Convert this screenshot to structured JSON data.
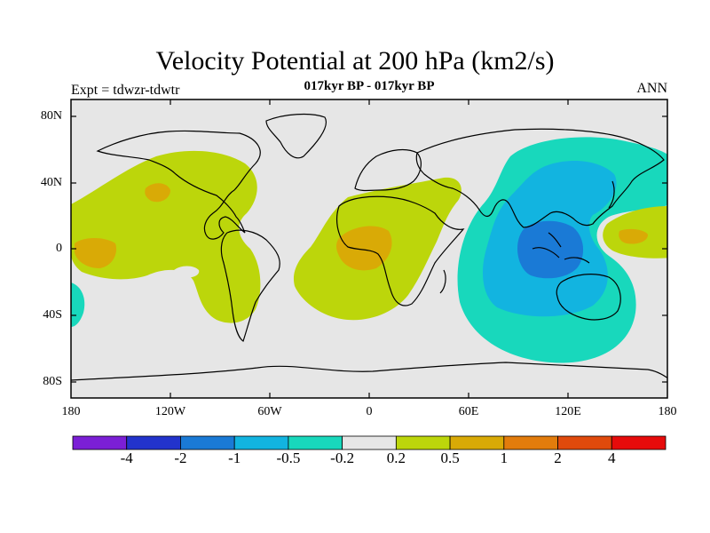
{
  "figure": {
    "title": "Velocity Potential at 200 hPa (km2/s)",
    "subtitle": "017kyr BP - 017kyr BP",
    "left_label": "Expt = tdwzr-tdwtr",
    "right_label": "ANN"
  },
  "map": {
    "projection": "cylindrical equidistant",
    "lon_range": [
      -180,
      180
    ],
    "lat_range": [
      -90,
      90
    ],
    "background_color": "#e6e6e6",
    "lat_ticks": [
      "80N",
      "40N",
      "0",
      "40S",
      "80S"
    ],
    "lon_ticks": [
      "180",
      "120W",
      "60W",
      "0",
      "60E",
      "120E",
      "180"
    ]
  },
  "colorbar": {
    "colors": [
      "#7b1fd6",
      "#2233cc",
      "#1a7ad6",
      "#12b4e0",
      "#18d8bc",
      "#e6e6e6",
      "#bcd60b",
      "#d9aa06",
      "#e27c0c",
      "#e04a0c",
      "#e60b0b"
    ],
    "labels": [
      "-4",
      "-2",
      "-1",
      "-0.5",
      "-0.2",
      "0.2",
      "0.5",
      "1",
      "2",
      "4"
    ]
  },
  "chart_data": {
    "type": "heatmap",
    "variable": "Velocity Potential at 200 hPa",
    "units": "km2/s",
    "levels": [
      -4,
      -2,
      -1,
      -0.5,
      -0.2,
      0.2,
      0.5,
      1,
      2,
      4
    ],
    "regions": [
      {
        "area": "Indian Ocean / Maritime Continent / West Pacific",
        "min_value_range": [
          -1,
          -0.5
        ]
      },
      {
        "area": "Maritime Continent core",
        "min_value_range": [
          -2,
          -1
        ]
      },
      {
        "area": "North Pacific / Americas",
        "value_range": [
          0.2,
          0.5
        ]
      },
      {
        "area": "East Pacific near equator",
        "value_range": [
          0.5,
          1
        ]
      },
      {
        "area": "Atlantic / Africa",
        "value_range": [
          0.2,
          0.5
        ]
      },
      {
        "area": "Central Africa",
        "value_range": [
          0.5,
          1
        ]
      },
      {
        "area": "Central Pacific (near dateline)",
        "value_range": [
          0.2,
          0.5
        ]
      }
    ]
  }
}
